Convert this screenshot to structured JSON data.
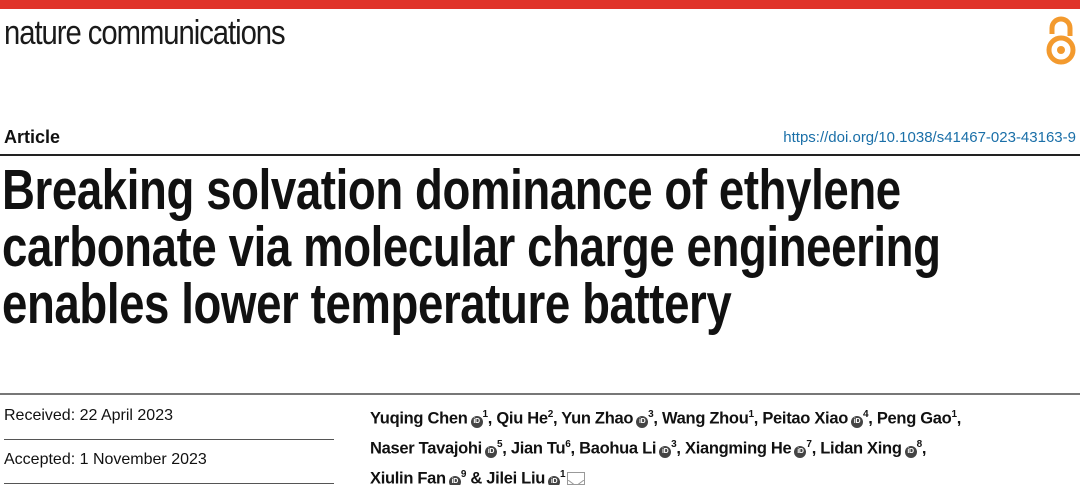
{
  "header": {
    "journal": "nature communications",
    "article_type": "Article",
    "doi": "https://doi.org/10.1038/s41467-023-43163-9"
  },
  "title_lines": [
    "Breaking solvation dominance of ethylene",
    "carbonate via molecular charge engineering",
    "enables lower temperature battery"
  ],
  "dates": {
    "received": "Received: 22 April 2023",
    "accepted": "Accepted: 1 November 2023"
  },
  "authors": [
    {
      "name": "Yuqing Chen",
      "orcid": true,
      "aff": "1",
      "sep": ", "
    },
    {
      "name": "Qiu He",
      "orcid": false,
      "aff": "2",
      "sep": ", "
    },
    {
      "name": "Yun Zhao",
      "orcid": true,
      "aff": "3",
      "sep": ", "
    },
    {
      "name": "Wang Zhou",
      "orcid": false,
      "aff": "1",
      "sep": ", "
    },
    {
      "name": "Peitao Xiao",
      "orcid": true,
      "aff": "4",
      "sep": ", "
    },
    {
      "name": "Peng Gao",
      "orcid": false,
      "aff": "1",
      "sep": ", "
    },
    {
      "name": "Naser Tavajohi",
      "orcid": true,
      "aff": "5",
      "sep": ", "
    },
    {
      "name": "Jian Tu",
      "orcid": false,
      "aff": "6",
      "sep": ", "
    },
    {
      "name": "Baohua Li",
      "orcid": true,
      "aff": "3",
      "sep": ", "
    },
    {
      "name": "Xiangming He",
      "orcid": true,
      "aff": "7",
      "sep": ", "
    },
    {
      "name": "Lidan Xing",
      "orcid": true,
      "aff": "8",
      "sep": ", "
    },
    {
      "name": "Xiulin Fan",
      "orcid": true,
      "aff": "9",
      "sep": " & "
    },
    {
      "name": "Jilei Liu",
      "orcid": true,
      "aff": "1",
      "sep": ""
    }
  ],
  "colors": {
    "accent": "#e0342a",
    "link": "#1a6fa8",
    "open_access": "#f39a2e"
  }
}
